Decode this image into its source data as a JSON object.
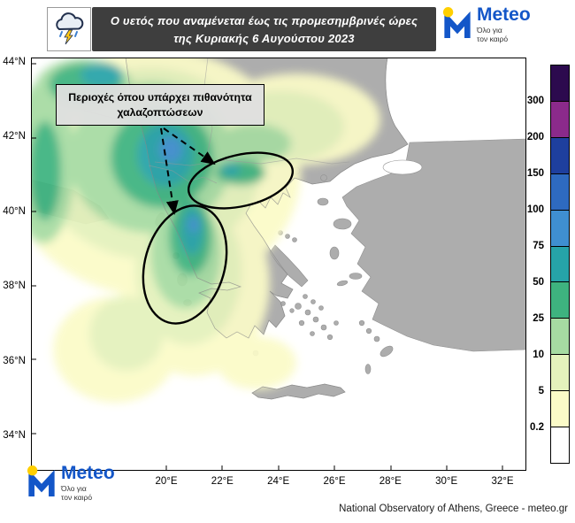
{
  "header": {
    "title_line1": "Ο υετός που αναμένεται έως τις προμεσημβρινές ώρες",
    "title_line2": "της Κυριακής 6 Αυγούστου 2023"
  },
  "logo": {
    "brand": "Meteo",
    "tagline_line1": "Όλο για",
    "tagline_line2": "τον καιρό",
    "brand_color": "#1356c8",
    "sun_color": "#ffcf00"
  },
  "annotation": {
    "line1": "Περιοχές όπου υπάρχει πιθανότητα",
    "line2": "χαλαζοπτώσεων"
  },
  "axes": {
    "lat": [
      "44°N",
      "42°N",
      "40°N",
      "38°N",
      "36°N",
      "34°N"
    ],
    "lon": [
      "20°E",
      "22°E",
      "24°E",
      "26°E",
      "28°E",
      "30°E",
      "32°E"
    ]
  },
  "colorbar": {
    "labels": [
      "300",
      "200",
      "150",
      "100",
      "75",
      "50",
      "25",
      "10",
      "5",
      "0.2"
    ],
    "colors": [
      "#2c0a4e",
      "#8b2a8b",
      "#1e3f9e",
      "#2e6ac0",
      "#3f8fd0",
      "#26a3a8",
      "#3eb37f",
      "#a6dba2",
      "#e4f2bc",
      "#fbfbc8",
      "#ffffff"
    ]
  },
  "footer": {
    "credit": "National Observatory of Athens, Greece - meteo.gr"
  }
}
